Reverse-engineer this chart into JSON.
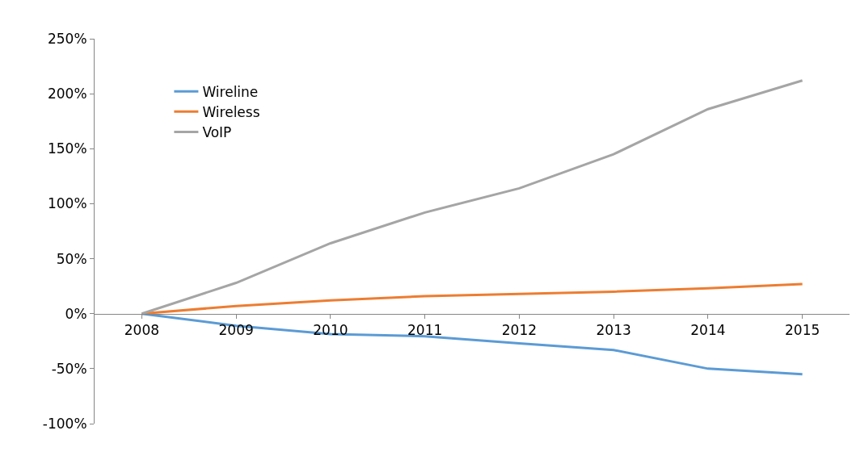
{
  "chart_data": {
    "type": "line",
    "categories": [
      "2008",
      "2009",
      "2010",
      "2011",
      "2012",
      "2013",
      "2014",
      "2015"
    ],
    "series": [
      {
        "name": "Wireline",
        "color": "#5b9bd5",
        "values": [
          0,
          -11,
          -18.5,
          -20.5,
          -27,
          -33,
          -50,
          -55
        ]
      },
      {
        "name": "Wireless",
        "color": "#ed7d31",
        "values": [
          0,
          7,
          12,
          16,
          18,
          20,
          23,
          27
        ]
      },
      {
        "name": "VoIP",
        "color": "#a5a5a5",
        "values": [
          0,
          28,
          64,
          92,
          114,
          145,
          186,
          212
        ]
      }
    ],
    "ylim": [
      -100,
      250
    ],
    "yticks": [
      {
        "value": -100,
        "label": "-100%"
      },
      {
        "value": -50,
        "label": "-50%"
      },
      {
        "value": 0,
        "label": "0%"
      },
      {
        "value": 50,
        "label": "50%"
      },
      {
        "value": 100,
        "label": "100%"
      },
      {
        "value": 150,
        "label": "150%"
      },
      {
        "value": 200,
        "label": "200%"
      },
      {
        "value": 250,
        "label": "250%"
      }
    ],
    "legend": "top left",
    "marker": "none",
    "line_style": "solid"
  }
}
